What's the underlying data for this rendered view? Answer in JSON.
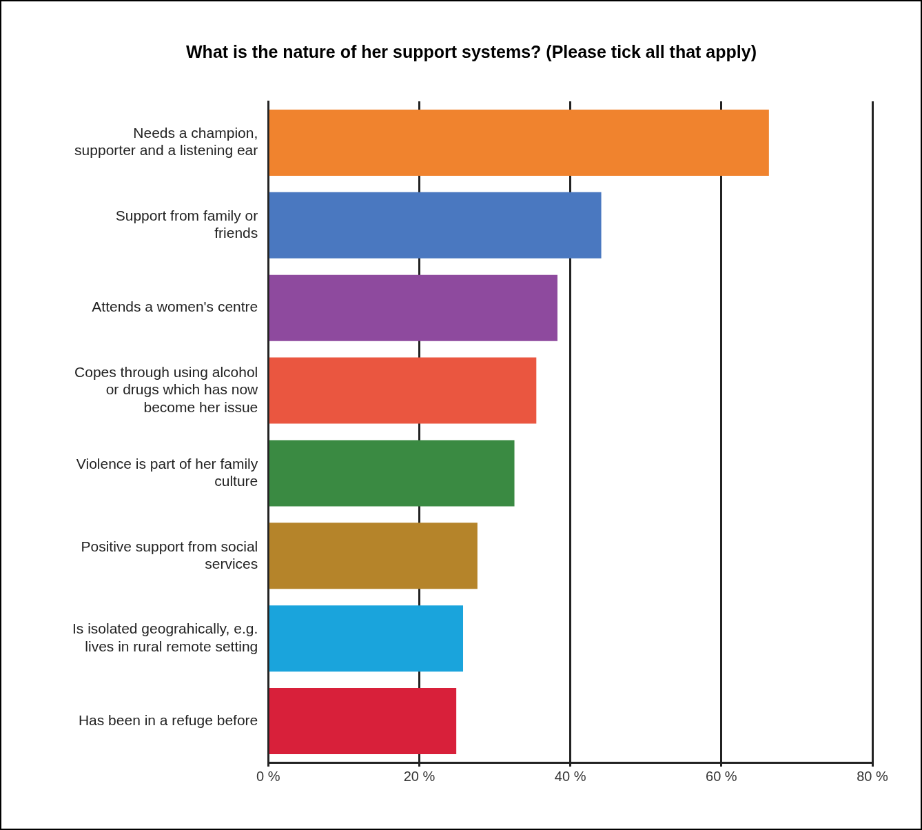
{
  "chart_data": {
    "type": "bar",
    "orientation": "horizontal",
    "title": "What is the nature of her support systems? (Please tick all that apply)",
    "categories": [
      "Needs a champion, supporter and a listening ear",
      "Support from family or friends",
      "Attends a women's centre",
      "Copes through using alcohol or drugs which has now become her issue",
      "Violence is part of her family culture",
      "Positive support from social services",
      "Is isolated geograhically, e.g. lives in rural remote setting",
      "Has been in a refuge before"
    ],
    "values": [
      66.3,
      44.1,
      38.3,
      35.5,
      32.6,
      27.7,
      25.8,
      24.9
    ],
    "colors": [
      "#f0832e",
      "#4a78c0",
      "#8e4a9e",
      "#ea5640",
      "#3a8a42",
      "#b5842a",
      "#1aa4dc",
      "#d8203a"
    ],
    "xlim": [
      0,
      80
    ],
    "xticks": [
      {
        "value": 0,
        "label": "0 %"
      },
      {
        "value": 20,
        "label": "20 %"
      },
      {
        "value": 40,
        "label": "40 %"
      },
      {
        "value": 60,
        "label": "60 %"
      },
      {
        "value": 80,
        "label": "80 %"
      }
    ],
    "grid": "x",
    "legend": false
  }
}
